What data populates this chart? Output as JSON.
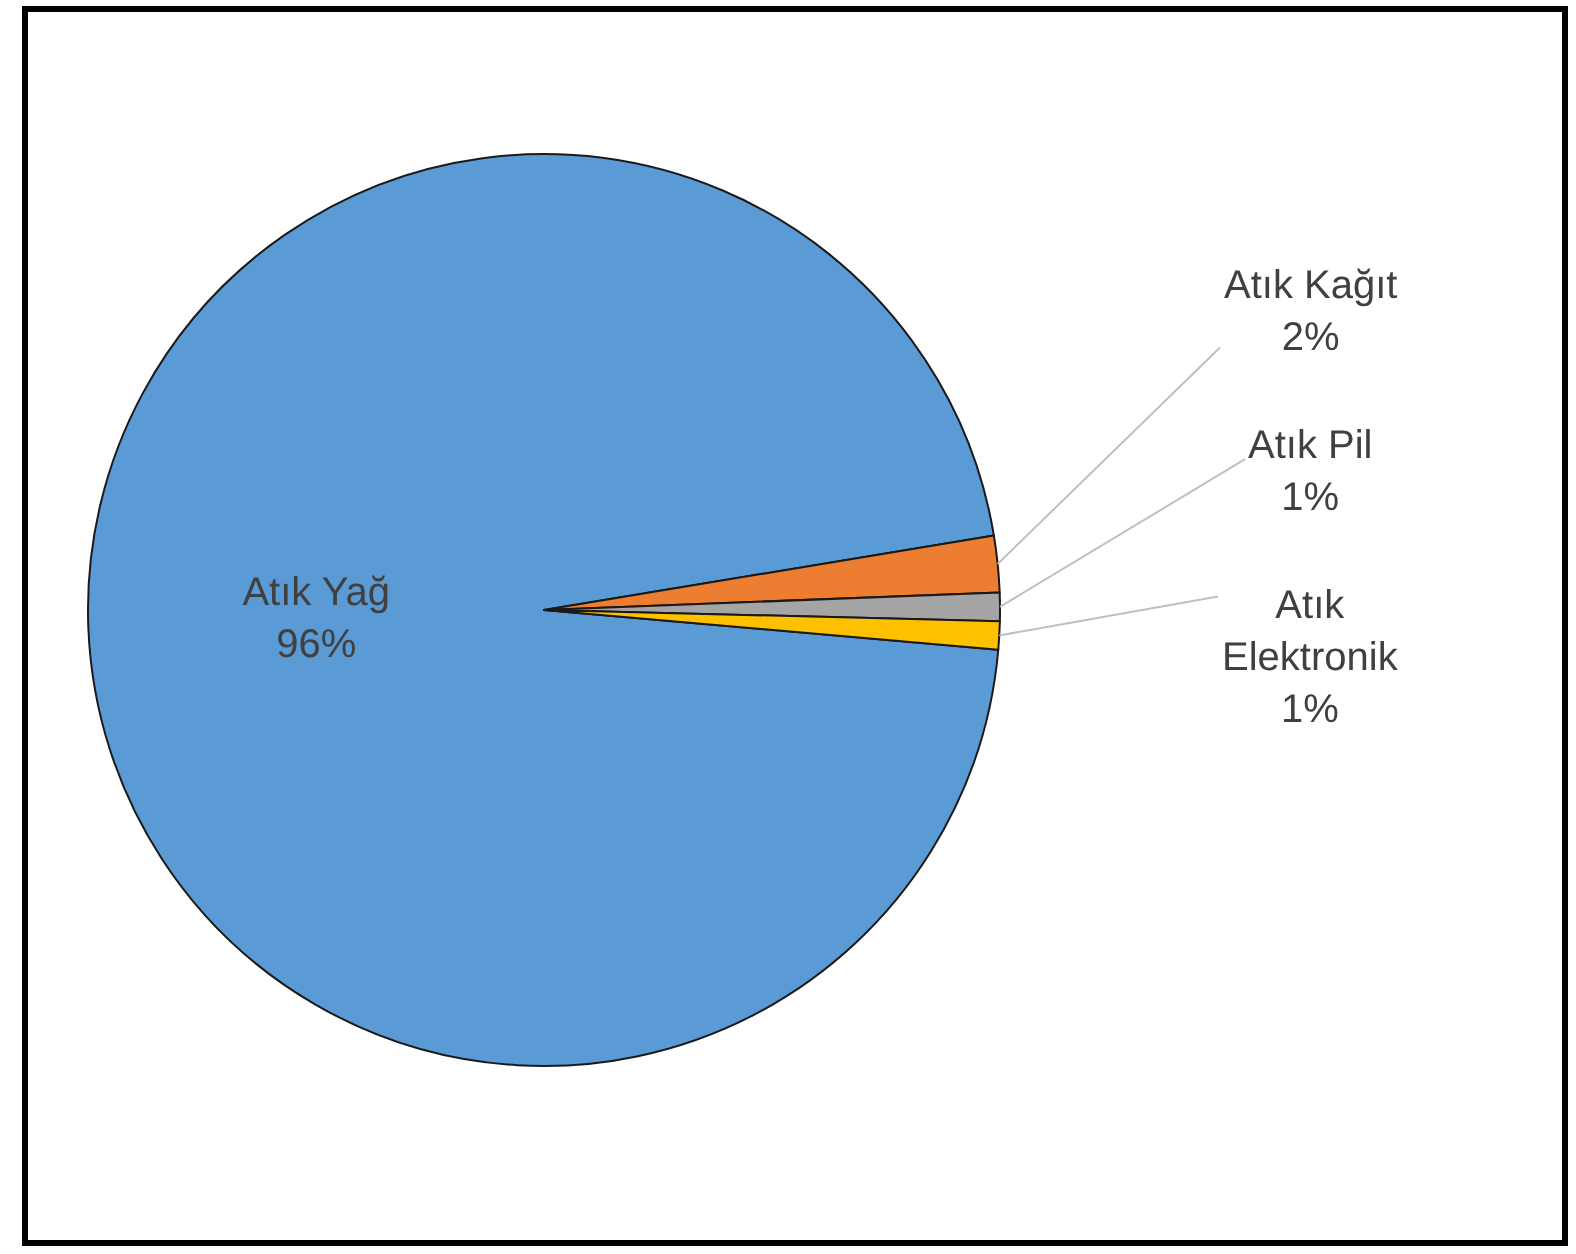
{
  "chart_data": {
    "type": "pie",
    "categories": [
      "Atık Yağ",
      "Atık Kağıt",
      "Atık Pil",
      "Atık Elektronik"
    ],
    "values": [
      96,
      2,
      1,
      1
    ],
    "colors": [
      "#5b9bd5",
      "#ed7d31",
      "#a5a5a5",
      "#ffc000"
    ],
    "value_labels": [
      "96%",
      "2%",
      "1%",
      "1%"
    ]
  }
}
